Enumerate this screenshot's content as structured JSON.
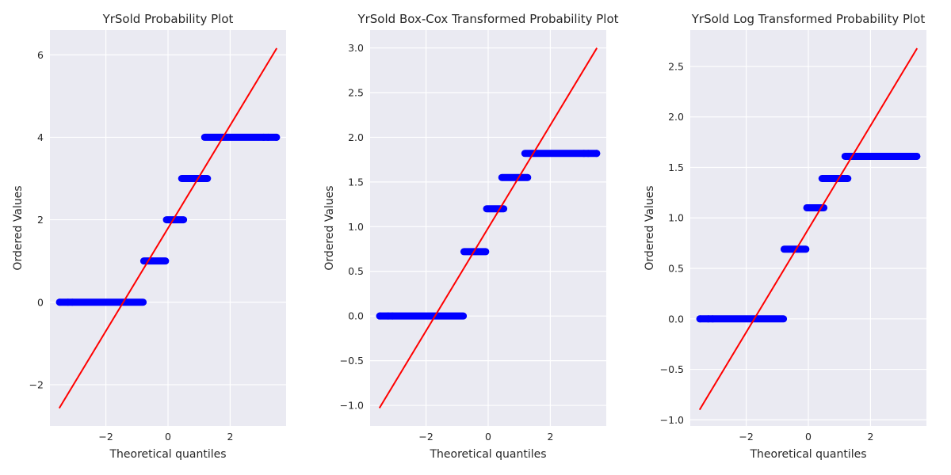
{
  "chart_data": [
    {
      "type": "scatter",
      "title": "YrSold Probability Plot",
      "xlabel": "Theoretical quantiles",
      "ylabel": "Ordered Values",
      "xlim": [
        -3.8,
        3.8
      ],
      "ylim": [
        -3.0,
        6.6
      ],
      "xticks": [
        -2,
        0,
        2
      ],
      "yticks": [
        -2,
        0,
        2,
        4,
        6
      ],
      "grid": true,
      "point_color": "#0000ff",
      "line_color": "#ff0000",
      "fit_line": {
        "x": [
          -3.5,
          3.5
        ],
        "y": [
          -2.57,
          6.16
        ]
      },
      "groups": [
        {
          "y": 0,
          "x_start": -3.49,
          "x_end": -0.8,
          "isolated": [
            -3.49,
            -3.22,
            -3.08
          ]
        },
        {
          "y": 1,
          "x_start": -0.78,
          "x_end": -0.08,
          "isolated": []
        },
        {
          "y": 2,
          "x_start": -0.05,
          "x_end": 0.5,
          "isolated": []
        },
        {
          "y": 3,
          "x_start": 0.44,
          "x_end": 1.27,
          "isolated": []
        },
        {
          "y": 4,
          "x_start": 1.18,
          "x_end": 3.49,
          "isolated": [
            3.08,
            3.22,
            3.49
          ]
        }
      ]
    },
    {
      "type": "scatter",
      "title": "YrSold Box-Cox Transformed Probability Plot",
      "xlabel": "Theoretical quantiles",
      "ylabel": "Ordered Values",
      "xlim": [
        -3.8,
        3.8
      ],
      "ylim": [
        -1.23,
        3.2
      ],
      "xticks": [
        -2,
        0,
        2
      ],
      "yticks": [
        -1.0,
        -0.5,
        0.0,
        0.5,
        1.0,
        1.5,
        2.0,
        2.5,
        3.0
      ],
      "ytick_labels": [
        "−1.0",
        "−0.5",
        "0.0",
        "0.5",
        "1.0",
        "1.5",
        "2.0",
        "2.5",
        "3.0"
      ],
      "grid": true,
      "point_color": "#0000ff",
      "line_color": "#ff0000",
      "fit_line": {
        "x": [
          -3.5,
          3.5
        ],
        "y": [
          -1.03,
          3.0
        ]
      },
      "groups": [
        {
          "y": 0.0,
          "x_start": -3.49,
          "x_end": -0.8,
          "isolated": [
            -3.49,
            -3.22,
            -3.08
          ]
        },
        {
          "y": 0.72,
          "x_start": -0.78,
          "x_end": -0.08,
          "isolated": []
        },
        {
          "y": 1.2,
          "x_start": -0.05,
          "x_end": 0.5,
          "isolated": []
        },
        {
          "y": 1.55,
          "x_start": 0.44,
          "x_end": 1.27,
          "isolated": []
        },
        {
          "y": 1.82,
          "x_start": 1.18,
          "x_end": 3.49,
          "isolated": [
            3.08,
            3.22,
            3.49
          ]
        }
      ]
    },
    {
      "type": "scatter",
      "title": "YrSold Log Transformed Probability Plot",
      "xlabel": "Theoretical quantiles",
      "ylabel": "Ordered Values",
      "xlim": [
        -3.8,
        3.8
      ],
      "ylim": [
        -1.06,
        2.86
      ],
      "xticks": [
        -2,
        0,
        2
      ],
      "yticks": [
        -1.0,
        -0.5,
        0.0,
        0.5,
        1.0,
        1.5,
        2.0,
        2.5
      ],
      "ytick_labels": [
        "−1.0",
        "−0.5",
        "0.0",
        "0.5",
        "1.0",
        "1.5",
        "2.0",
        "2.5"
      ],
      "grid": true,
      "point_color": "#0000ff",
      "line_color": "#ff0000",
      "fit_line": {
        "x": [
          -3.5,
          3.5
        ],
        "y": [
          -0.9,
          2.68
        ]
      },
      "groups": [
        {
          "y": 0.0,
          "x_start": -3.49,
          "x_end": -0.8,
          "isolated": [
            -3.49,
            -3.22,
            -3.08
          ]
        },
        {
          "y": 0.69,
          "x_start": -0.78,
          "x_end": -0.08,
          "isolated": []
        },
        {
          "y": 1.1,
          "x_start": -0.05,
          "x_end": 0.5,
          "isolated": []
        },
        {
          "y": 1.39,
          "x_start": 0.44,
          "x_end": 1.27,
          "isolated": []
        },
        {
          "y": 1.61,
          "x_start": 1.18,
          "x_end": 3.49,
          "isolated": [
            3.08,
            3.22,
            3.49
          ]
        }
      ]
    }
  ]
}
